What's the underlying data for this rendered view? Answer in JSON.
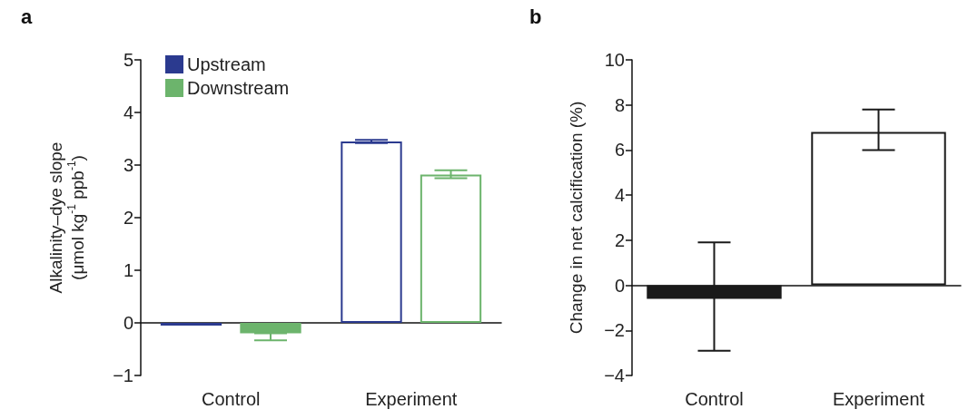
{
  "chart_data": [
    {
      "type": "bar",
      "title": "a",
      "ylabel": "Alkalinity–dye slope (μmol kg$^{-1}$ ppb$^{-1}$)",
      "categories": [
        "Control",
        "Experiment"
      ],
      "series": [
        {
          "name": "Upstream",
          "color": "#2b3a8f",
          "colors": [
            "#2b3a8f",
            "#ffffff"
          ],
          "values": [
            -0.05,
            3.45
          ],
          "errors": [
            null,
            [
              3.42,
              3.48
            ]
          ]
        },
        {
          "name": "Downstream",
          "color": "#6cb46c",
          "colors": [
            "#6cb46c",
            "#ffffff"
          ],
          "values": [
            -0.2,
            2.82
          ],
          "errors": [
            [
              -0.33,
              -0.2
            ],
            [
              2.75,
              2.9
            ]
          ]
        }
      ],
      "ylim": [
        -1,
        5
      ],
      "yticks": [
        -1,
        0,
        1,
        2,
        3,
        4,
        5
      ],
      "legend": "top left"
    },
    {
      "type": "bar",
      "title": "b",
      "ylabel": "Change in net calcification (%)",
      "categories": [
        "Control",
        "Experiment"
      ],
      "series": [
        {
          "color": "#1a1a1a",
          "colors": [
            "#1a1a1a",
            "#ffffff"
          ],
          "values": [
            -0.6,
            6.8
          ],
          "errors": [
            [
              -2.9,
              1.9
            ],
            [
              6.0,
              7.8
            ]
          ]
        }
      ],
      "ylim": [
        -4,
        10
      ],
      "yticks": [
        -4,
        -2,
        0,
        2,
        4,
        6,
        8,
        10
      ]
    }
  ]
}
